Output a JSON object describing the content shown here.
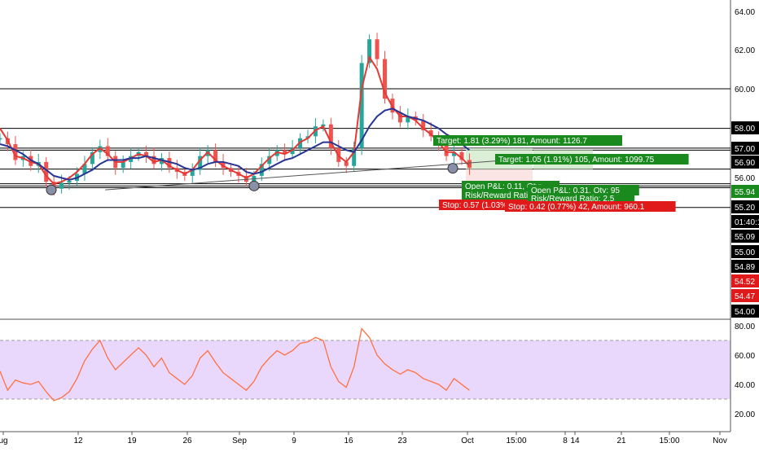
{
  "chart_data": {
    "type": "candlestick",
    "title": "",
    "price_axis": {
      "ticks": [
        "64.00",
        "62.00",
        "60.00",
        "58.00",
        "57.00",
        "56.90",
        "56.00",
        "55.94",
        "55.20",
        "01:40:15",
        "55.09",
        "55.00",
        "54.89",
        "54.52",
        "54.47",
        "54.00"
      ]
    },
    "rsi_axis": {
      "ticks": [
        "80.00",
        "60.00",
        "40.00",
        "20.00"
      ]
    },
    "x_axis": {
      "ticks": [
        "ug",
        "12",
        "19",
        "26",
        "Sep",
        "9",
        "16",
        "23",
        "Oct",
        "15:00",
        "8",
        "14",
        "21",
        "15:00",
        "Nov"
      ]
    },
    "horizontal_levels": [
      60.0,
      58.0,
      57.0,
      56.9,
      55.94,
      55.2,
      55.09,
      55.0,
      54.0
    ],
    "trendline": {
      "from": {
        "date": "2019-08-08",
        "price": 54.95
      },
      "to": {
        "date": "2019-09-30",
        "price": 56.0
      }
    },
    "trade_labels": {
      "target1": "Target: 1.81 (3.29%) 181, Amount: 1126.7",
      "target2": "Target: 1.05 (1.91%) 105, Amount: 1099.75",
      "open1": "Open P&L: 0.11, Qty:",
      "rr1": "Risk/Reward Ratio:",
      "open2": "Open P&L: 0.31, Qty: 95",
      "rr2": "Risk/Reward Ratio: 2.5",
      "stop1": "Stop: 0.57 (1.03%)",
      "stop2": "Stop: 0.42 (0.77%) 42, Amount: 960.1"
    },
    "price_path": [
      [
        "2019-08-01",
        57.5
      ],
      [
        "2019-08-02",
        57.2
      ],
      [
        "2019-08-03",
        56.4
      ],
      [
        "2019-08-04",
        56.6
      ],
      [
        "2019-08-05",
        56.1
      ],
      [
        "2019-08-06",
        56.3
      ],
      [
        "2019-08-07",
        55.3
      ],
      [
        "2019-08-08",
        54.95
      ],
      [
        "2019-08-09",
        55.25
      ],
      [
        "2019-08-10",
        55.35
      ],
      [
        "2019-08-11",
        55.7
      ],
      [
        "2019-08-12",
        56.2
      ],
      [
        "2019-08-13",
        56.8
      ],
      [
        "2019-08-14",
        57.1
      ],
      [
        "2019-08-15",
        56.6
      ],
      [
        "2019-08-16",
        56.0
      ],
      [
        "2019-08-17",
        56.3
      ],
      [
        "2019-08-18",
        56.6
      ],
      [
        "2019-08-19",
        56.8
      ],
      [
        "2019-08-20",
        56.6
      ],
      [
        "2019-08-21",
        56.2
      ],
      [
        "2019-08-22",
        56.5
      ],
      [
        "2019-08-23",
        56.0
      ],
      [
        "2019-08-24",
        55.8
      ],
      [
        "2019-08-25",
        55.6
      ],
      [
        "2019-08-26",
        55.9
      ],
      [
        "2019-08-27",
        56.6
      ],
      [
        "2019-08-28",
        56.9
      ],
      [
        "2019-08-29",
        56.3
      ],
      [
        "2019-08-30",
        56.0
      ],
      [
        "2019-08-31",
        55.8
      ],
      [
        "2019-09-01",
        55.6
      ],
      [
        "2019-09-02",
        55.3
      ],
      [
        "2019-09-03",
        55.6
      ],
      [
        "2019-09-04",
        56.2
      ],
      [
        "2019-09-05",
        56.6
      ],
      [
        "2019-09-06",
        56.9
      ],
      [
        "2019-09-07",
        56.7
      ],
      [
        "2019-09-08",
        57.0
      ],
      [
        "2019-09-09",
        57.5
      ],
      [
        "2019-09-10",
        57.6
      ],
      [
        "2019-09-11",
        58.1
      ],
      [
        "2019-09-12",
        58.2
      ],
      [
        "2019-09-13",
        57.0
      ],
      [
        "2019-09-14",
        56.3
      ],
      [
        "2019-09-15",
        56.1
      ],
      [
        "2019-09-16",
        57.0
      ],
      [
        "2019-09-17",
        61.3
      ],
      [
        "2019-09-18",
        62.5
      ],
      [
        "2019-09-19",
        61.5
      ],
      [
        "2019-09-20",
        59.5
      ],
      [
        "2019-09-21",
        58.8
      ],
      [
        "2019-09-22",
        58.3
      ],
      [
        "2019-09-23",
        58.6
      ],
      [
        "2019-09-24",
        58.4
      ],
      [
        "2019-09-25",
        57.9
      ],
      [
        "2019-09-26",
        57.6
      ],
      [
        "2019-09-27",
        57.2
      ],
      [
        "2019-09-28",
        56.6
      ],
      [
        "2019-09-29",
        56.8
      ],
      [
        "2019-09-30",
        56.4
      ],
      [
        "2019-10-01",
        56.0
      ]
    ],
    "series": [
      {
        "values": [
          58.0,
          57.4,
          56.6,
          56.5,
          56.3,
          56.2,
          55.6,
          55.2,
          55.3,
          55.5,
          55.8,
          56.2,
          56.7,
          57.0,
          56.7,
          56.3,
          56.3,
          56.5,
          56.7,
          56.6,
          56.3,
          56.4,
          56.1,
          55.9,
          55.7,
          55.9,
          56.4,
          56.8,
          56.4,
          56.1,
          55.9,
          55.7,
          55.5,
          55.7,
          56.1,
          56.5,
          56.8,
          56.7,
          56.9,
          57.3,
          57.5,
          57.9,
          58.1,
          57.3,
          56.6,
          56.3,
          56.8,
          60.0,
          61.6,
          61.0,
          59.8,
          59.1,
          58.6,
          58.6,
          58.4,
          58.0,
          57.7,
          57.3,
          56.8,
          56.8,
          56.5,
          56.1
        ]
      },
      {
        "values": [
          57.2,
          57.1,
          56.9,
          56.7,
          56.4,
          56.2,
          55.9,
          55.6,
          55.5,
          55.4,
          55.5,
          55.7,
          55.9,
          56.2,
          56.4,
          56.4,
          56.4,
          56.5,
          56.5,
          56.6,
          56.5,
          56.4,
          56.3,
          56.2,
          56.0,
          55.9,
          56.0,
          56.2,
          56.3,
          56.3,
          56.2,
          56.1,
          55.8,
          55.7,
          55.8,
          56.0,
          56.2,
          56.4,
          56.5,
          56.7,
          56.9,
          57.1,
          57.3,
          57.3,
          57.1,
          56.9,
          56.8,
          57.4,
          58.1,
          58.6,
          58.9,
          59.0,
          58.8,
          58.6,
          58.5,
          58.4,
          58.2,
          58.0,
          57.7,
          57.5,
          57.2,
          56.9
        ]
      }
    ],
    "rsi": [
      49,
      36,
      43,
      41,
      40,
      42,
      35,
      29,
      31,
      35,
      44,
      56,
      64,
      70,
      58,
      50,
      55,
      60,
      65,
      60,
      52,
      58,
      48,
      44,
      40,
      46,
      58,
      63,
      55,
      48,
      44,
      40,
      36,
      42,
      52,
      58,
      63,
      60,
      63,
      68,
      69,
      72,
      70,
      52,
      42,
      38,
      52,
      78,
      72,
      60,
      54,
      50,
      47,
      50,
      48,
      44,
      42,
      40,
      36,
      44,
      40,
      36
    ],
    "rsi_levels": [
      70,
      30
    ],
    "rsi_range": [
      15,
      85
    ],
    "ylim": [
      53.7,
      64.6
    ]
  }
}
